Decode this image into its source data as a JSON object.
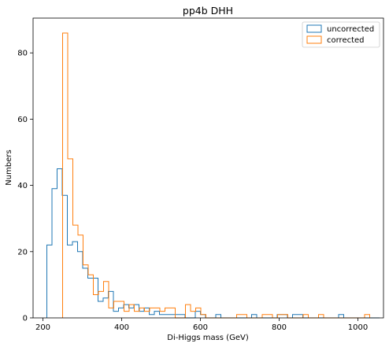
{
  "chart_data": {
    "type": "histogram",
    "title": "pp4b DHH",
    "xlabel": "Di-Higgs mass (GeV)",
    "ylabel": "Numbers",
    "xlim": [
      175,
      1065
    ],
    "ylim": [
      0,
      90.5
    ],
    "xticks": [
      200,
      400,
      600,
      800,
      1000
    ],
    "yticks": [
      0,
      20,
      40,
      60,
      80
    ],
    "grid": false,
    "legend_position": "top-right",
    "series": [
      {
        "name": "uncorrected",
        "color": "#1f77b4",
        "points": [
          [
            210,
            22
          ],
          [
            223,
            39
          ],
          [
            236,
            45
          ],
          [
            249,
            37
          ],
          [
            262,
            22
          ],
          [
            275,
            23
          ],
          [
            288,
            20
          ],
          [
            301,
            15
          ],
          [
            314,
            12
          ],
          [
            327,
            12
          ],
          [
            340,
            5
          ],
          [
            353,
            6
          ],
          [
            366,
            8
          ],
          [
            379,
            2
          ],
          [
            392,
            3
          ],
          [
            405,
            4
          ],
          [
            418,
            3
          ],
          [
            431,
            4
          ],
          [
            444,
            2
          ],
          [
            457,
            3
          ],
          [
            470,
            1
          ],
          [
            483,
            2
          ],
          [
            496,
            1
          ],
          [
            509,
            1
          ],
          [
            522,
            1
          ],
          [
            535,
            1
          ],
          [
            548,
            1
          ],
          [
            561,
            0
          ],
          [
            574,
            0
          ],
          [
            587,
            2
          ],
          [
            600,
            1
          ],
          [
            613,
            0
          ],
          [
            626,
            0
          ],
          [
            639,
            1
          ],
          [
            652,
            0
          ],
          [
            665,
            0
          ],
          [
            678,
            0
          ],
          [
            691,
            0
          ],
          [
            704,
            0
          ],
          [
            717,
            0
          ],
          [
            730,
            1
          ],
          [
            743,
            0
          ],
          [
            756,
            0
          ],
          [
            769,
            0
          ],
          [
            782,
            0
          ],
          [
            795,
            1
          ],
          [
            808,
            1
          ],
          [
            821,
            0
          ],
          [
            834,
            1
          ],
          [
            847,
            1
          ],
          [
            860,
            0
          ],
          [
            873,
            0
          ],
          [
            886,
            0
          ],
          [
            899,
            0
          ],
          [
            912,
            0
          ],
          [
            925,
            0
          ],
          [
            938,
            0
          ],
          [
            951,
            1
          ],
          [
            964,
            0
          ],
          [
            977,
            0
          ],
          [
            990,
            0
          ],
          [
            1003,
            0
          ],
          [
            1016,
            0
          ],
          [
            1029,
            0
          ],
          [
            1042,
            0
          ]
        ]
      },
      {
        "name": "corrected",
        "color": "#ff7f0e",
        "points": [
          [
            250,
            86
          ],
          [
            263,
            48
          ],
          [
            276,
            28
          ],
          [
            289,
            25
          ],
          [
            302,
            16
          ],
          [
            315,
            13
          ],
          [
            328,
            7
          ],
          [
            341,
            8
          ],
          [
            354,
            11
          ],
          [
            367,
            3
          ],
          [
            380,
            5
          ],
          [
            393,
            5
          ],
          [
            406,
            2
          ],
          [
            419,
            4
          ],
          [
            432,
            2
          ],
          [
            445,
            3
          ],
          [
            458,
            2
          ],
          [
            471,
            3
          ],
          [
            484,
            3
          ],
          [
            497,
            2
          ],
          [
            510,
            3
          ],
          [
            523,
            3
          ],
          [
            536,
            0
          ],
          [
            549,
            0
          ],
          [
            562,
            4
          ],
          [
            575,
            2
          ],
          [
            588,
            3
          ],
          [
            601,
            1
          ],
          [
            614,
            0
          ],
          [
            627,
            0
          ],
          [
            640,
            0
          ],
          [
            653,
            0
          ],
          [
            666,
            0
          ],
          [
            679,
            0
          ],
          [
            692,
            1
          ],
          [
            705,
            1
          ],
          [
            718,
            0
          ],
          [
            731,
            0
          ],
          [
            744,
            0
          ],
          [
            757,
            1
          ],
          [
            770,
            1
          ],
          [
            783,
            0
          ],
          [
            796,
            1
          ],
          [
            809,
            1
          ],
          [
            822,
            0
          ],
          [
            835,
            0
          ],
          [
            848,
            0
          ],
          [
            861,
            1
          ],
          [
            874,
            0
          ],
          [
            887,
            0
          ],
          [
            900,
            1
          ],
          [
            913,
            0
          ],
          [
            926,
            0
          ],
          [
            939,
            0
          ],
          [
            952,
            0
          ],
          [
            965,
            0
          ],
          [
            978,
            0
          ],
          [
            991,
            0
          ],
          [
            1004,
            0
          ],
          [
            1017,
            1
          ]
        ]
      }
    ]
  }
}
